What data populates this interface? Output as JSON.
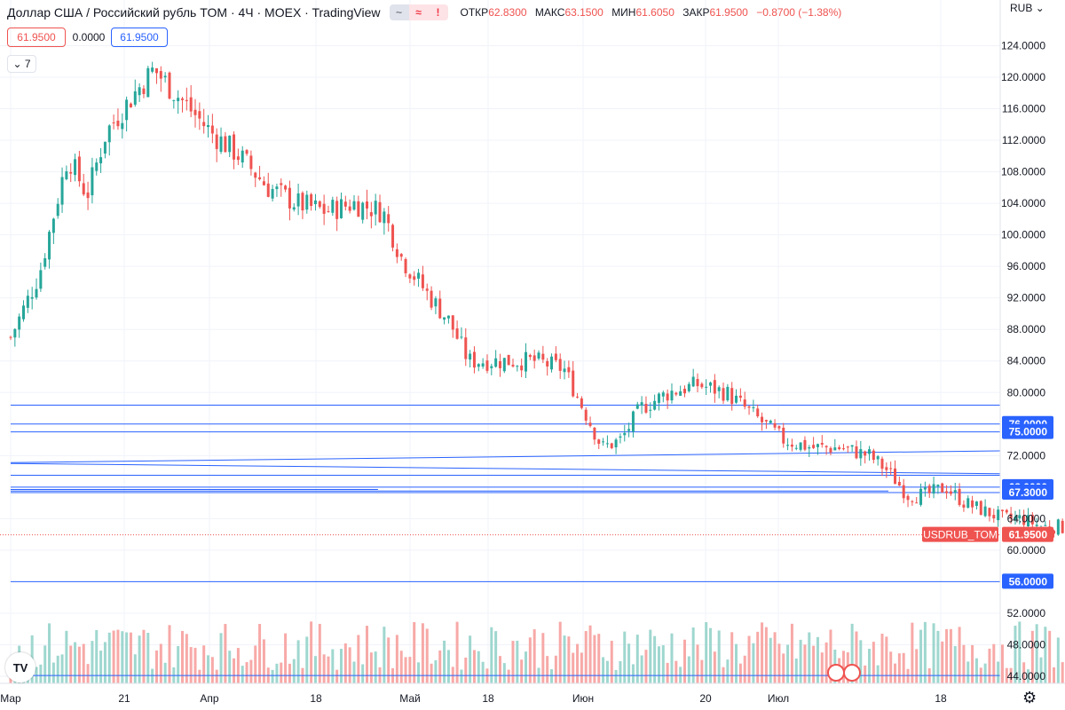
{
  "header": {
    "title": "Доллар США / Российский рубль TOM · 4Ч · MOEX · TradingView",
    "pills": [
      "~",
      "≈",
      "!"
    ],
    "ohlc": [
      {
        "label": "ОТКР",
        "value": "62.8300"
      },
      {
        "label": "МАКС",
        "value": "63.1500"
      },
      {
        "label": "МИН",
        "value": "61.6050"
      },
      {
        "label": "ЗАКР",
        "value": "61.9500"
      }
    ],
    "change": "−0.8700 (−1.38%)"
  },
  "quote": {
    "bid": "61.9500",
    "spread": "0.0000",
    "ask": "61.9500"
  },
  "indicators_toggle": "7",
  "currency": "RUB",
  "logo": "TV",
  "icons": {
    "logo": "tradingview-logo-icon",
    "settings": "gear-icon",
    "currency": "chevron-down-icon"
  },
  "colors": {
    "up": "#26a69a",
    "down": "#ef5350",
    "levels": "#2962ff",
    "volume_up": "#9fd7cf",
    "volume_down": "#f7a9a7"
  },
  "chart_data": {
    "type": "candlestick",
    "symbol_label": "USDRUB_TOM",
    "last_price": "61.9500",
    "ylim": [
      42,
      127
    ],
    "y_ticks": [
      "124.0000",
      "120.0000",
      "116.0000",
      "112.0000",
      "108.0000",
      "104.0000",
      "100.0000",
      "96.0000",
      "92.0000",
      "88.0000",
      "84.0000",
      "80.0000",
      "72.0000",
      "64.0000",
      "60.0000",
      "52.0000",
      "48.0000",
      "44.0000"
    ],
    "x_ticks": [
      "Мар",
      "21",
      "Апр",
      "18",
      "Май",
      "18",
      "Июн",
      "20",
      "Июл",
      "18"
    ],
    "level_labels": [
      "76.0000",
      "75.0000",
      "68.0000",
      "67.3000",
      "56.0000"
    ],
    "close_path": [
      [
        0,
        87
      ],
      [
        0.3,
        95
      ],
      [
        0.6,
        110
      ],
      [
        0.8,
        105
      ],
      [
        1.0,
        113
      ],
      [
        1.3,
        118
      ],
      [
        1.5,
        121
      ],
      [
        1.8,
        117
      ],
      [
        2.1,
        113
      ],
      [
        2.4,
        110
      ],
      [
        2.7,
        106
      ],
      [
        3.0,
        104
      ],
      [
        3.3,
        103
      ],
      [
        3.6,
        104
      ],
      [
        3.9,
        103
      ],
      [
        4.1,
        97
      ],
      [
        4.4,
        92
      ],
      [
        4.6,
        89
      ],
      [
        4.8,
        84
      ],
      [
        5.2,
        84
      ],
      [
        5.5,
        84
      ],
      [
        5.8,
        83
      ],
      [
        6.0,
        78
      ],
      [
        6.2,
        73
      ],
      [
        6.4,
        74
      ],
      [
        6.6,
        78
      ],
      [
        6.9,
        80
      ],
      [
        7.2,
        81
      ],
      [
        7.5,
        80
      ],
      [
        7.7,
        78
      ],
      [
        7.9,
        76
      ],
      [
        8.1,
        74
      ],
      [
        8.4,
        73
      ],
      [
        8.7,
        73
      ],
      [
        9.0,
        72
      ],
      [
        9.2,
        70
      ],
      [
        9.4,
        67
      ],
      [
        9.6,
        67
      ],
      [
        9.8,
        68
      ],
      [
        10.0,
        66
      ],
      [
        10.2,
        65
      ],
      [
        10.4,
        64
      ],
      [
        10.6,
        64
      ],
      [
        10.8,
        63
      ],
      [
        11.0,
        63
      ],
      [
        11.2,
        62
      ],
      [
        11.4,
        60
      ],
      [
        11.6,
        59
      ],
      [
        11.8,
        57
      ],
      [
        12.0,
        55
      ],
      [
        12.2,
        56
      ],
      [
        12.4,
        60
      ],
      [
        12.5,
        64
      ],
      [
        12.6,
        66
      ],
      [
        12.8,
        63
      ],
      [
        13.0,
        61
      ],
      [
        13.3,
        61
      ],
      [
        13.6,
        61
      ],
      [
        13.9,
        60
      ],
      [
        14.2,
        60
      ],
      [
        14.5,
        59
      ],
      [
        14.7,
        58
      ],
      [
        14.9,
        57
      ],
      [
        15.1,
        57
      ],
      [
        15.3,
        57
      ],
      [
        15.5,
        56
      ],
      [
        15.7,
        55
      ],
      [
        15.9,
        54
      ],
      [
        16.1,
        53
      ],
      [
        16.3,
        53
      ],
      [
        16.5,
        53
      ],
      [
        16.7,
        53
      ],
      [
        16.9,
        52
      ],
      [
        17.1,
        52
      ],
      [
        17.3,
        53
      ],
      [
        17.5,
        54
      ],
      [
        17.7,
        55
      ],
      [
        17.9,
        56
      ],
      [
        18.1,
        58
      ],
      [
        18.3,
        63
      ],
      [
        18.5,
        64
      ],
      [
        18.7,
        63
      ],
      [
        18.8,
        61.95
      ]
    ],
    "volume_range": [
      0,
      100
    ],
    "levels": [
      {
        "y": [
          76,
          76
        ],
        "x": [
          0,
          22.3
        ]
      },
      {
        "y": [
          75,
          75
        ],
        "x": [
          0,
          22.3
        ]
      },
      {
        "y": [
          68,
          68
        ],
        "x": [
          0,
          22.3
        ]
      },
      {
        "y": [
          67.3,
          67.3
        ],
        "x": [
          0,
          22.3
        ]
      },
      {
        "y": [
          56,
          56
        ],
        "x": [
          0,
          22.3
        ]
      },
      {
        "y": [
          44.1,
          44.1
        ],
        "x": [
          0,
          22.3
        ]
      },
      {
        "y": [
          78.4,
          78.4
        ],
        "x": [
          0,
          12.3
        ]
      },
      {
        "y": [
          71.1,
          72.6
        ],
        "x": [
          0,
          22.3
        ]
      },
      {
        "y": [
          71.0,
          69.7
        ],
        "x": [
          0,
          11.6
        ]
      },
      {
        "y": [
          69.5,
          69.5
        ],
        "x": [
          0,
          18.5
        ]
      },
      {
        "y": [
          67.7,
          67.7
        ],
        "x": [
          0,
          3.85
        ]
      },
      {
        "y": [
          67.5,
          67.5
        ],
        "x": [
          0,
          9.2
        ]
      }
    ]
  }
}
